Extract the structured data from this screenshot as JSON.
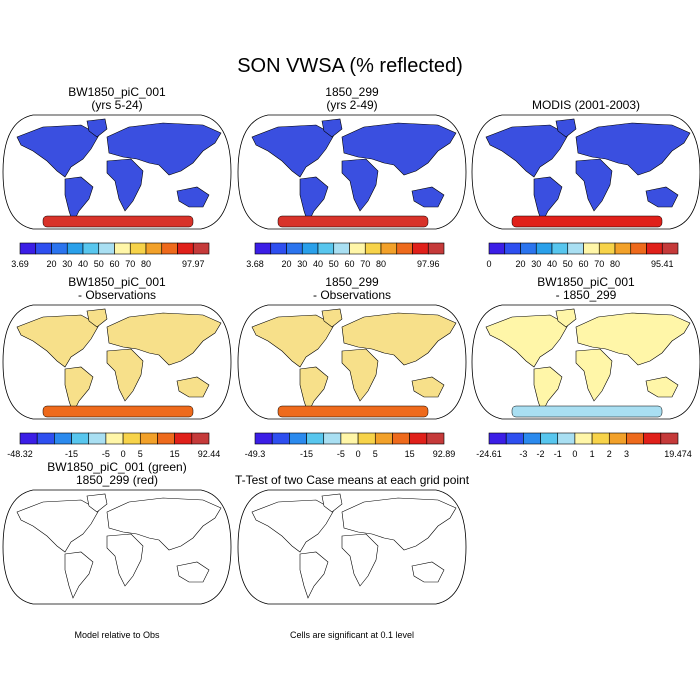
{
  "title": "SON VWSA (% reflected)",
  "panels": [
    {
      "title": [
        "BW1850_piC_001",
        "(yrs 5-24)"
      ],
      "colorbar": [
        3.69,
        20,
        30,
        40,
        50,
        60,
        70,
        80,
        97.97
      ]
    },
    {
      "title": [
        "1850_299",
        "(yrs 2-49)"
      ],
      "colorbar": [
        3.68,
        20,
        30,
        40,
        50,
        60,
        70,
        80,
        97.96
      ]
    },
    {
      "title": [
        "MODIS (2001-2003)"
      ],
      "colorbar": [
        0,
        20,
        30,
        40,
        50,
        60,
        70,
        80,
        95.41
      ]
    },
    {
      "title": [
        "BW1850_piC_001",
        "- Observations"
      ],
      "colorbar": [
        -48.32,
        -15,
        -5,
        0,
        5,
        15,
        92.44
      ]
    },
    {
      "title": [
        "1850_299",
        "- Observations"
      ],
      "colorbar": [
        -49.3,
        -15,
        -5,
        0,
        5,
        15,
        92.89
      ]
    },
    {
      "title": [
        "BW1850_piC_001",
        "- 1850_299"
      ],
      "colorbar": [
        -24.61,
        -3,
        -2,
        -1,
        0,
        1,
        2,
        3,
        19.474
      ]
    },
    {
      "title": [
        "BW1850_piC_001 (green)",
        "1850_299 (red)"
      ],
      "note": "Model relative to Obs"
    },
    {
      "title": [
        "T-Test of two Case means at each grid point"
      ],
      "note": "Cells are significant at 0.1 level"
    }
  ]
}
